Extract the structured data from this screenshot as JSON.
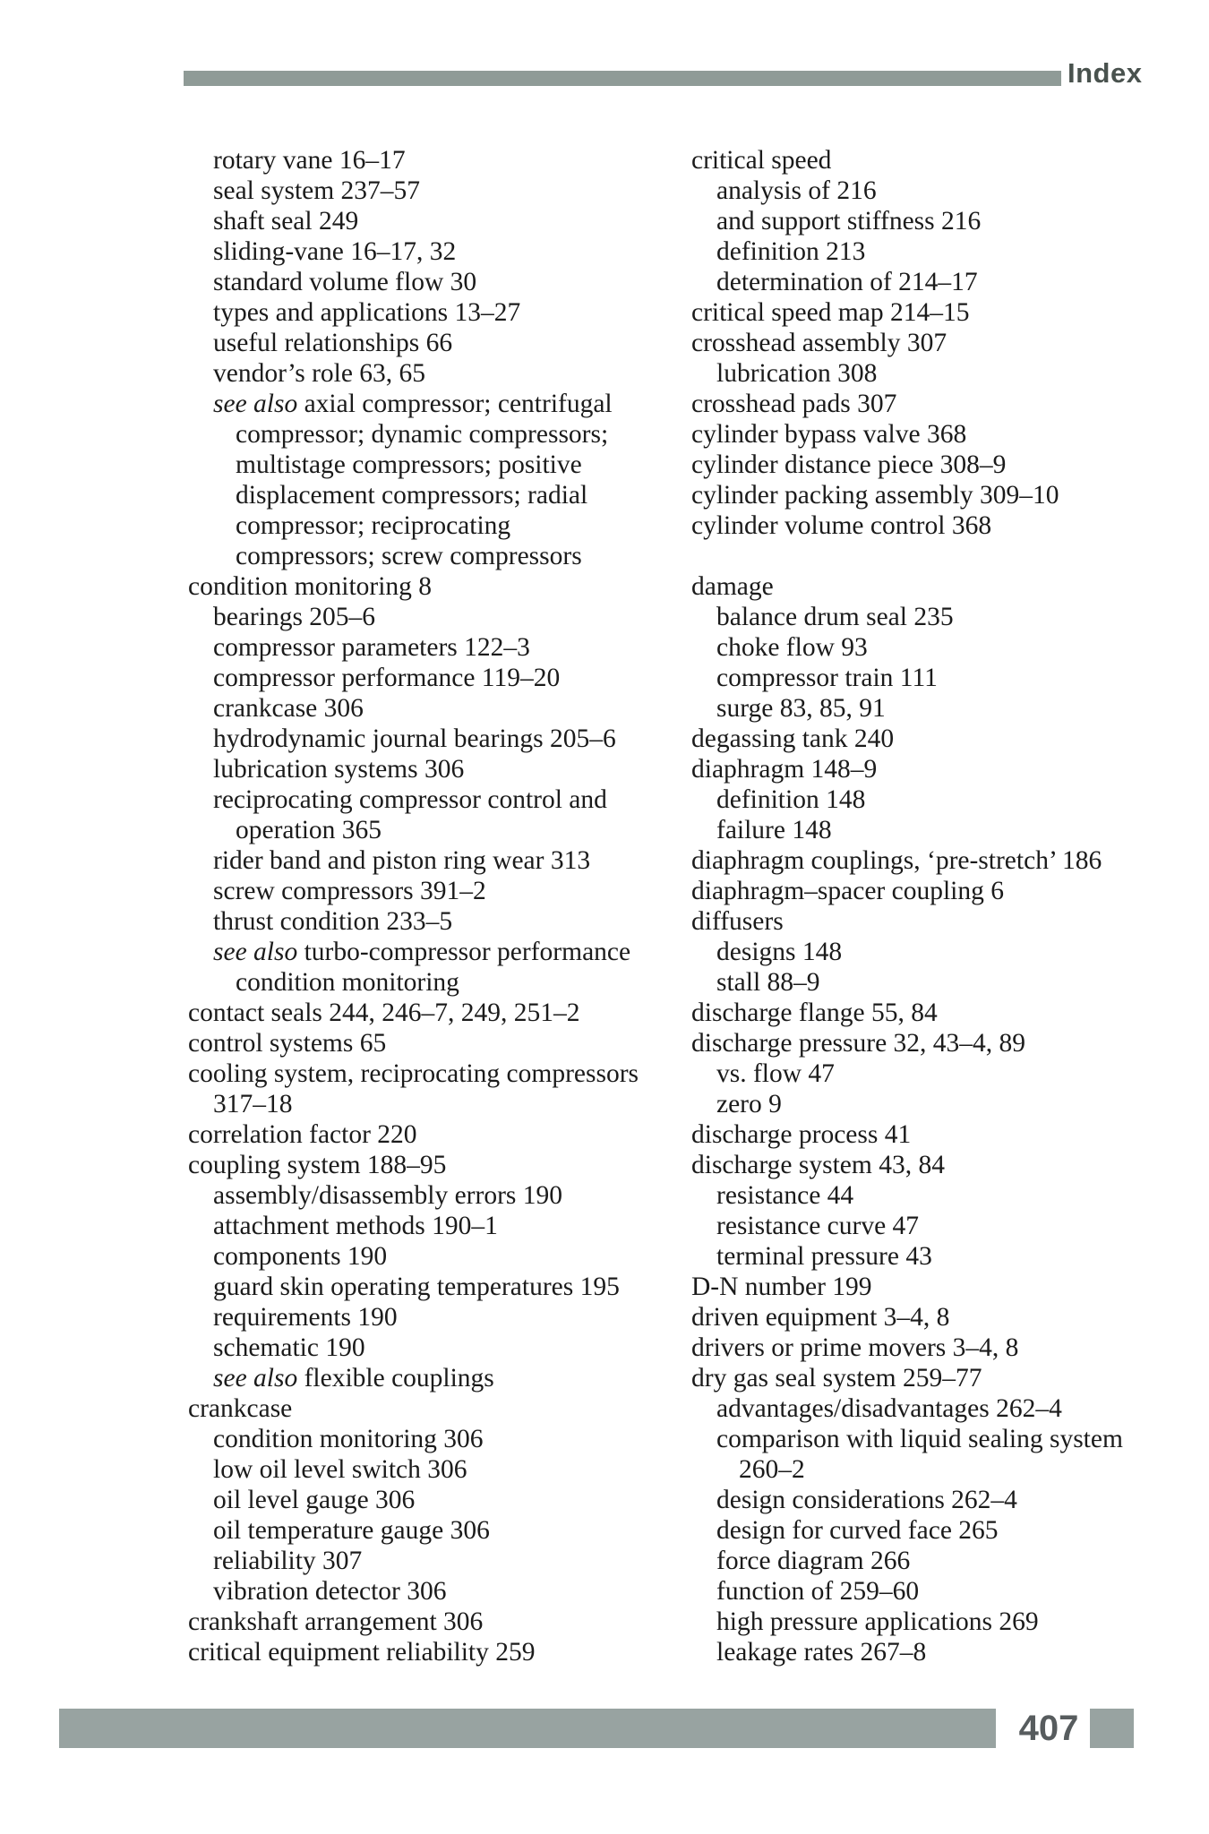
{
  "header": {
    "title": "Index",
    "bar_color": "#8f9b97",
    "title_color": "#49524e"
  },
  "footer": {
    "page_number": "407",
    "bar_color": "#98a3a1",
    "number_color": "#575c5e"
  },
  "text_color": "#1b1b1b",
  "index": {
    "left_column": [
      {
        "text": "rotary vane 16–17",
        "indent": 1
      },
      {
        "text": "seal system 237–57",
        "indent": 1
      },
      {
        "text": "shaft seal 249",
        "indent": 1
      },
      {
        "text": "sliding-vane 16–17, 32",
        "indent": 1
      },
      {
        "text": "standard volume flow 30",
        "indent": 1
      },
      {
        "text": "types and applications 13–27",
        "indent": 1
      },
      {
        "text": "useful relationships 66",
        "indent": 1
      },
      {
        "text": "vendor’s role 63, 65",
        "indent": 1
      },
      {
        "italic_prefix": "see also ",
        "text": "axial compressor; centrifugal",
        "indent": 1
      },
      {
        "text": "compressor; dynamic compressors;",
        "indent": 2
      },
      {
        "text": "multistage compressors; positive",
        "indent": 2
      },
      {
        "text": "displacement compressors; radial",
        "indent": 2
      },
      {
        "text": "compressor; reciprocating",
        "indent": 2
      },
      {
        "text": "compressors; screw compressors",
        "indent": 2
      },
      {
        "text": "condition monitoring 8",
        "indent": 0
      },
      {
        "text": "bearings 205–6",
        "indent": 1
      },
      {
        "text": "compressor parameters 122–3",
        "indent": 1
      },
      {
        "text": "compressor performance 119–20",
        "indent": 1
      },
      {
        "text": "crankcase 306",
        "indent": 1
      },
      {
        "text": "hydrodynamic journal bearings 205–6",
        "indent": 1
      },
      {
        "text": "lubrication systems 306",
        "indent": 1
      },
      {
        "text": "reciprocating compressor control and",
        "indent": 1
      },
      {
        "text": "operation 365",
        "indent": 2
      },
      {
        "text": "rider band and piston ring wear 313",
        "indent": 1
      },
      {
        "text": "screw compressors 391–2",
        "indent": 1
      },
      {
        "text": "thrust condition 233–5",
        "indent": 1
      },
      {
        "italic_prefix": "see also ",
        "text": "turbo-compressor performance",
        "indent": 1
      },
      {
        "text": "condition monitoring",
        "indent": 2
      },
      {
        "text": "contact seals 244, 246–7, 249, 251–2",
        "indent": 0
      },
      {
        "text": "control systems 65",
        "indent": 0
      },
      {
        "text": "cooling system, reciprocating compressors",
        "indent": 0
      },
      {
        "text": "317–18",
        "indent": 1
      },
      {
        "text": "correlation factor 220",
        "indent": 0
      },
      {
        "text": "coupling system 188–95",
        "indent": 0
      },
      {
        "text": "assembly/disassembly errors 190",
        "indent": 1
      },
      {
        "text": "attachment methods 190–1",
        "indent": 1
      },
      {
        "text": "components 190",
        "indent": 1
      },
      {
        "text": "guard skin operating temperatures 195",
        "indent": 1
      },
      {
        "text": "requirements 190",
        "indent": 1
      },
      {
        "text": "schematic 190",
        "indent": 1
      },
      {
        "italic_prefix": "see also ",
        "text": "flexible couplings",
        "indent": 1
      },
      {
        "text": "crankcase",
        "indent": 0
      },
      {
        "text": "condition monitoring 306",
        "indent": 1
      },
      {
        "text": "low oil level switch 306",
        "indent": 1
      },
      {
        "text": "oil level gauge 306",
        "indent": 1
      },
      {
        "text": "oil temperature gauge 306",
        "indent": 1
      },
      {
        "text": "reliability 307",
        "indent": 1
      },
      {
        "text": "vibration detector 306",
        "indent": 1
      },
      {
        "text": "crankshaft arrangement 306",
        "indent": 0
      },
      {
        "text": "critical equipment reliability 259",
        "indent": 0
      }
    ],
    "right_column": [
      {
        "text": "critical speed",
        "indent": 0
      },
      {
        "text": "analysis of 216",
        "indent": 1
      },
      {
        "text": "and support stiffness 216",
        "indent": 1
      },
      {
        "text": "definition 213",
        "indent": 1
      },
      {
        "text": "determination of 214–17",
        "indent": 1
      },
      {
        "text": "critical speed map 214–15",
        "indent": 0
      },
      {
        "text": "crosshead assembly 307",
        "indent": 0
      },
      {
        "text": "lubrication 308",
        "indent": 1
      },
      {
        "text": "crosshead pads 307",
        "indent": 0
      },
      {
        "text": "cylinder bypass valve 368",
        "indent": 0
      },
      {
        "text": "cylinder distance piece 308–9",
        "indent": 0
      },
      {
        "text": "cylinder packing assembly 309–10",
        "indent": 0
      },
      {
        "text": "cylinder volume control 368",
        "indent": 0
      },
      {
        "blank": true
      },
      {
        "text": "damage",
        "indent": 0
      },
      {
        "text": "balance drum seal 235",
        "indent": 1
      },
      {
        "text": "choke flow 93",
        "indent": 1
      },
      {
        "text": "compressor train 111",
        "indent": 1
      },
      {
        "text": "surge 83, 85, 91",
        "indent": 1
      },
      {
        "text": "degassing tank 240",
        "indent": 0
      },
      {
        "text": "diaphragm 148–9",
        "indent": 0
      },
      {
        "text": "definition 148",
        "indent": 1
      },
      {
        "text": "failure 148",
        "indent": 1
      },
      {
        "text": "diaphragm couplings, ‘pre-stretch’ 186",
        "indent": 0
      },
      {
        "text": "diaphragm–spacer coupling 6",
        "indent": 0
      },
      {
        "text": "diffusers",
        "indent": 0
      },
      {
        "text": "designs 148",
        "indent": 1
      },
      {
        "text": "stall 88–9",
        "indent": 1
      },
      {
        "text": "discharge flange 55, 84",
        "indent": 0
      },
      {
        "text": "discharge pressure 32, 43–4, 89",
        "indent": 0
      },
      {
        "text": "vs. flow 47",
        "indent": 1
      },
      {
        "text": "zero 9",
        "indent": 1
      },
      {
        "text": "discharge process 41",
        "indent": 0
      },
      {
        "text": "discharge system 43, 84",
        "indent": 0
      },
      {
        "text": "resistance 44",
        "indent": 1
      },
      {
        "text": "resistance curve 47",
        "indent": 1
      },
      {
        "text": "terminal pressure 43",
        "indent": 1
      },
      {
        "text": "D-N number 199",
        "indent": 0
      },
      {
        "text": "driven equipment 3–4, 8",
        "indent": 0
      },
      {
        "text": "drivers or prime movers 3–4, 8",
        "indent": 0
      },
      {
        "text": "dry gas seal system 259–77",
        "indent": 0
      },
      {
        "text": "advantages/disadvantages 262–4",
        "indent": 1
      },
      {
        "text": "comparison with liquid sealing system",
        "indent": 1
      },
      {
        "text": "260–2",
        "indent": 2
      },
      {
        "text": "design considerations 262–4",
        "indent": 1
      },
      {
        "text": "design for curved face 265",
        "indent": 1
      },
      {
        "text": "force diagram 266",
        "indent": 1
      },
      {
        "text": "function of 259–60",
        "indent": 1
      },
      {
        "text": "high pressure applications 269",
        "indent": 1
      },
      {
        "text": "leakage rates 267–8",
        "indent": 1
      }
    ]
  }
}
